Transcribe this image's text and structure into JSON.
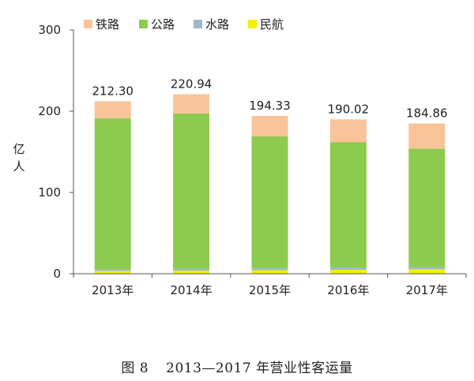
{
  "chart_data": {
    "type": "bar",
    "stacked": true,
    "categories": [
      "2013年",
      "2014年",
      "2015年",
      "2016年",
      "2017年"
    ],
    "series": [
      {
        "name": "民航",
        "color": "#f2f200",
        "values": [
          3.5,
          3.9,
          4.4,
          4.9,
          5.5
        ]
      },
      {
        "name": "水路",
        "color": "#9bb7d4",
        "values": [
          2.4,
          2.6,
          2.7,
          2.7,
          2.8
        ]
      },
      {
        "name": "公路",
        "color": "#8ccb4d",
        "values": [
          185.3,
          190.8,
          161.9,
          154.4,
          145.7
        ]
      },
      {
        "name": "铁路",
        "color": "#f9c49a",
        "values": [
          21.1,
          23.6,
          25.3,
          28.0,
          30.9
        ]
      }
    ],
    "totals": [
      "212.30",
      "220.94",
      "194.33",
      "190.02",
      "184.86"
    ],
    "ylabel": "亿人",
    "ylim": [
      0,
      300
    ],
    "yticks": [
      "0",
      "100",
      "200",
      "300"
    ],
    "legend": {
      "position": "top",
      "order": [
        "铁路",
        "公路",
        "水路",
        "民航"
      ]
    }
  },
  "caption": {
    "figure": "图 8",
    "title": "2013—2017 年营业性客运量"
  }
}
